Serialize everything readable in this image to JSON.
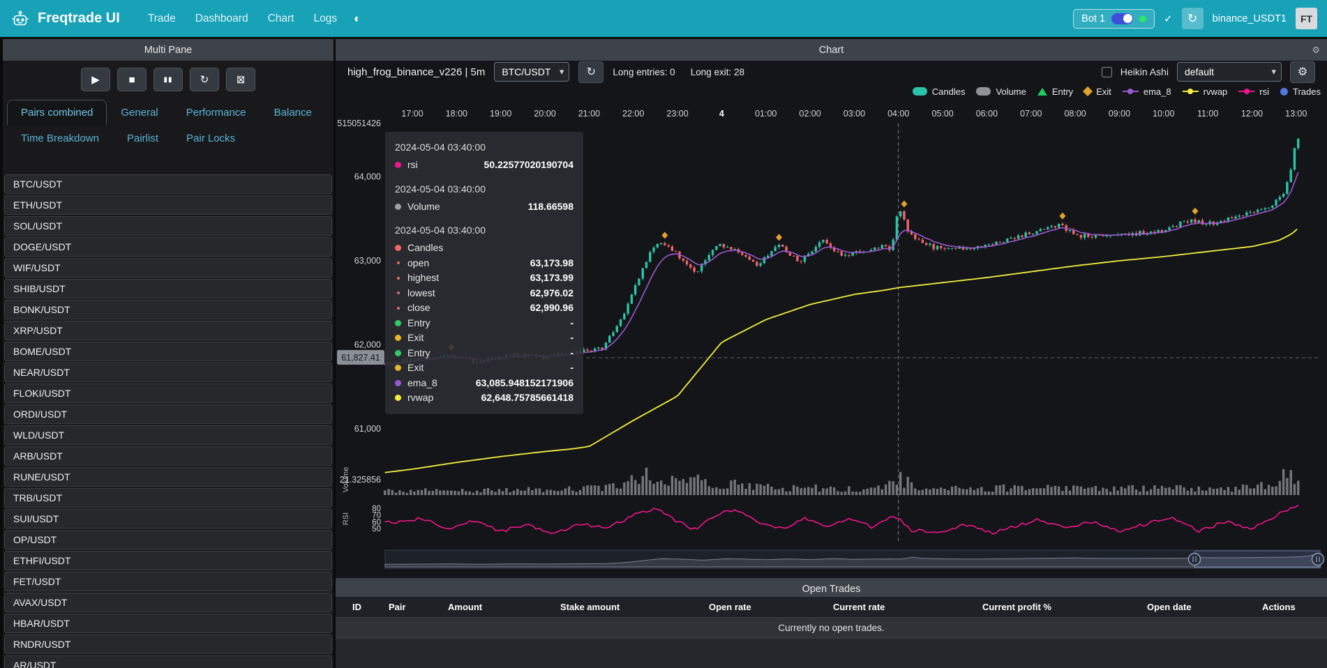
{
  "icons": {
    "play": "▶",
    "stop": "■",
    "pause": "▮▮",
    "refresh": "↻",
    "clear": "⊠",
    "theme": "◐",
    "gear": "⚙",
    "check": "✓",
    "caret": "▾"
  },
  "navbar": {
    "brand": "Freqtrade UI",
    "items": [
      "Trade",
      "Dashboard",
      "Chart",
      "Logs"
    ],
    "bot": {
      "label": "Bot 1",
      "toggle_on": true,
      "status_color": "#2ee66b"
    },
    "exchange_label": "binance_USDT1",
    "avatar_text": "FT"
  },
  "sidebar": {
    "title": "Multi Pane",
    "controls": [
      "play",
      "stop",
      "pause",
      "refresh",
      "clear"
    ],
    "tabs": [
      {
        "label": "Pairs combined",
        "active": true
      },
      {
        "label": "General",
        "active": false
      },
      {
        "label": "Performance",
        "active": false
      },
      {
        "label": "Balance",
        "active": false
      },
      {
        "label": "Time Breakdown",
        "active": false
      },
      {
        "label": "Pairlist",
        "active": false
      },
      {
        "label": "Pair Locks",
        "active": false
      }
    ],
    "pairs": [
      "BTC/USDT",
      "ETH/USDT",
      "SOL/USDT",
      "DOGE/USDT",
      "WIF/USDT",
      "SHIB/USDT",
      "BONK/USDT",
      "XRP/USDT",
      "BOME/USDT",
      "NEAR/USDT",
      "FLOKI/USDT",
      "ORDI/USDT",
      "WLD/USDT",
      "ARB/USDT",
      "RUNE/USDT",
      "TRB/USDT",
      "SUI/USDT",
      "OP/USDT",
      "ETHFI/USDT",
      "FET/USDT",
      "AVAX/USDT",
      "HBAR/USDT",
      "RNDR/USDT",
      "AR/USDT"
    ]
  },
  "chart_panel": {
    "title": "Chart",
    "strategy": "high_frog_binance_v226 | 5m",
    "pair": "BTC/USDT",
    "long_entries": "Long entries: 0",
    "long_exit": "Long exit: 28",
    "heikin_ashi_label": "Heikin Ashi",
    "heikin_ashi_checked": false,
    "plot_config": "default",
    "legend": [
      {
        "label": "Candles",
        "marker": "pill",
        "color": "#2cc4a8"
      },
      {
        "label": "Volume",
        "marker": "pill",
        "color": "#8f9398"
      },
      {
        "label": "Entry",
        "marker": "triangle",
        "color": "#1fce5f"
      },
      {
        "label": "Exit",
        "marker": "diamond",
        "color": "#e0a22e"
      },
      {
        "label": "ema_8",
        "marker": "line",
        "color": "#9b59d0"
      },
      {
        "label": "rvwap",
        "marker": "line",
        "color": "#f3ef3d"
      },
      {
        "label": "rsi",
        "marker": "line",
        "color": "#f0158c"
      },
      {
        "label": "Trades",
        "marker": "circle",
        "color": "#5577dd"
      }
    ],
    "crosshair_price_label": "61,827.41",
    "tooltip": {
      "sections": [
        {
          "time": "2024-05-04 03:40:00",
          "rows": [
            {
              "color": "#f0158c",
              "label": "rsi",
              "value": "50.22577020190704",
              "sub": false
            }
          ]
        },
        {
          "time": "2024-05-04 03:40:00",
          "rows": [
            {
              "color": "#9aa0a6",
              "label": "Volume",
              "value": "118.66598",
              "sub": false
            }
          ]
        },
        {
          "time": "2024-05-04 03:40:00",
          "rows": [
            {
              "color": "#ee6666",
              "label": "Candles",
              "value": "",
              "sub": false
            },
            {
              "color": "#ee6666",
              "label": "open",
              "value": "63,173.98",
              "sub": true
            },
            {
              "color": "#ee6666",
              "label": "highest",
              "value": "63,173.99",
              "sub": true
            },
            {
              "color": "#ee6666",
              "label": "lowest",
              "value": "62,976.02",
              "sub": true
            },
            {
              "color": "#ee6666",
              "label": "close",
              "value": "62,990.96",
              "sub": true
            },
            {
              "color": "#2fcc6b",
              "label": "Entry",
              "value": "-",
              "sub": false
            },
            {
              "color": "#e8b42a",
              "label": "Exit",
              "value": "-",
              "sub": false
            },
            {
              "color": "#2fcc6b",
              "label": "Entry",
              "value": "-",
              "sub": false
            },
            {
              "color": "#e8b42a",
              "label": "Exit",
              "value": "-",
              "sub": false
            },
            {
              "color": "#9b59d0",
              "label": "ema_8",
              "value": "63,085.948152171906",
              "sub": false
            },
            {
              "color": "#f3ef3d",
              "label": "rvwap",
              "value": "62,648.75785661418",
              "sub": false
            }
          ]
        }
      ]
    }
  },
  "chart_data": {
    "type": "candlestick",
    "pair": "BTC/USDT",
    "timeframe": "5m",
    "x_axis": {
      "ticks": [
        "17:00",
        "18:00",
        "19:00",
        "20:00",
        "21:00",
        "22:00",
        "23:00",
        "4",
        "01:00",
        "02:00",
        "03:00",
        "04:00",
        "05:00",
        "06:00",
        "07:00",
        "08:00",
        "09:00",
        "10:00",
        "11:00",
        "12:00",
        "13:00"
      ],
      "bold_tick": "4"
    },
    "y_axis": {
      "top_label": "515051426",
      "price_ticks": [
        "64,000",
        "63,000",
        "62,000",
        "61,000"
      ],
      "price_tick_values": [
        64000,
        63000,
        62000,
        61000
      ],
      "volume_label": "21.325856",
      "volume_title": "Volume",
      "rsi_title": "RSI",
      "rsi_ticks": [
        "80",
        "70",
        "60",
        "50"
      ]
    },
    "series": [
      "Candles",
      "Volume",
      "ema_8",
      "rvwap",
      "rsi"
    ],
    "crosshair": {
      "time": "04:00",
      "price": 61827.41
    },
    "price_range_view": [
      60400,
      64700
    ],
    "trend_anchors": [
      [
        -0.62,
        61780
      ],
      [
        0,
        61820
      ],
      [
        0.8,
        61880
      ],
      [
        1.5,
        61800
      ],
      [
        2.2,
        61890
      ],
      [
        3,
        61850
      ],
      [
        3.7,
        61920
      ],
      [
        4.3,
        61960
      ],
      [
        4.8,
        62370
      ],
      [
        5.2,
        62880
      ],
      [
        5.5,
        63220
      ],
      [
        5.9,
        63120
      ],
      [
        6.4,
        62840
      ],
      [
        6.9,
        63200
      ],
      [
        7.3,
        63140
      ],
      [
        7.8,
        62960
      ],
      [
        8.3,
        63180
      ],
      [
        8.8,
        62990
      ],
      [
        9.3,
        63250
      ],
      [
        9.7,
        63060
      ],
      [
        10.2,
        63120
      ],
      [
        10.6,
        63180
      ],
      [
        10.85,
        63120
      ],
      [
        11.0,
        63660
      ],
      [
        11.25,
        63300
      ],
      [
        11.8,
        63160
      ],
      [
        12.5,
        63130
      ],
      [
        13.2,
        63220
      ],
      [
        14.0,
        63330
      ],
      [
        14.6,
        63430
      ],
      [
        15.1,
        63300
      ],
      [
        15.8,
        63280
      ],
      [
        16.4,
        63330
      ],
      [
        17.0,
        63350
      ],
      [
        17.5,
        63480
      ],
      [
        18.1,
        63440
      ],
      [
        18.7,
        63540
      ],
      [
        19.3,
        63600
      ],
      [
        19.65,
        63750
      ],
      [
        19.85,
        63980
      ],
      [
        19.95,
        64350
      ],
      [
        20.07,
        64470
      ]
    ],
    "rvwap_anchors": [
      [
        -0.62,
        60480
      ],
      [
        0,
        60520
      ],
      [
        1,
        60600
      ],
      [
        2,
        60670
      ],
      [
        3,
        60730
      ],
      [
        3.6,
        60760
      ],
      [
        4,
        60790
      ],
      [
        5,
        61100
      ],
      [
        6,
        61390
      ],
      [
        7,
        62030
      ],
      [
        8,
        62300
      ],
      [
        9,
        62480
      ],
      [
        10,
        62600
      ],
      [
        10.67,
        62649
      ],
      [
        11,
        62680
      ],
      [
        12,
        62740
      ],
      [
        13,
        62800
      ],
      [
        14,
        62870
      ],
      [
        15,
        62940
      ],
      [
        16,
        63000
      ],
      [
        17,
        63050
      ],
      [
        18,
        63110
      ],
      [
        19,
        63170
      ],
      [
        19.6,
        63240
      ],
      [
        19.9,
        63320
      ],
      [
        20.07,
        63400
      ]
    ],
    "rsi_anchors": [
      [
        -0.62,
        58
      ],
      [
        0.2,
        65
      ],
      [
        0.8,
        50
      ],
      [
        1.4,
        62
      ],
      [
        2.0,
        46
      ],
      [
        2.6,
        56
      ],
      [
        3.2,
        43
      ],
      [
        3.8,
        57
      ],
      [
        4.4,
        50
      ],
      [
        5.0,
        70
      ],
      [
        5.5,
        80
      ],
      [
        5.9,
        64
      ],
      [
        6.4,
        48
      ],
      [
        6.9,
        72
      ],
      [
        7.4,
        77
      ],
      [
        7.9,
        56
      ],
      [
        8.4,
        49
      ],
      [
        8.9,
        66
      ],
      [
        9.4,
        53
      ],
      [
        9.9,
        64
      ],
      [
        10.4,
        52
      ],
      [
        10.9,
        70
      ],
      [
        11.3,
        48
      ],
      [
        11.9,
        44
      ],
      [
        12.5,
        57
      ],
      [
        13.1,
        44
      ],
      [
        13.7,
        54
      ],
      [
        14.2,
        64
      ],
      [
        14.8,
        49
      ],
      [
        15.4,
        61
      ],
      [
        16.0,
        45
      ],
      [
        16.6,
        57
      ],
      [
        17.2,
        66
      ],
      [
        17.8,
        47
      ],
      [
        18.4,
        60
      ],
      [
        19.0,
        49
      ],
      [
        19.5,
        68
      ],
      [
        19.8,
        78
      ],
      [
        20.07,
        84
      ]
    ],
    "volume_anchors": [
      [
        -0.62,
        0.22
      ],
      [
        2,
        0.22
      ],
      [
        4,
        0.3
      ],
      [
        4.8,
        0.5
      ],
      [
        5.4,
        0.95
      ],
      [
        5.9,
        0.6
      ],
      [
        6.4,
        0.65
      ],
      [
        7,
        0.45
      ],
      [
        7.6,
        0.5
      ],
      [
        8.2,
        0.3
      ],
      [
        9,
        0.35
      ],
      [
        9.8,
        0.3
      ],
      [
        10.5,
        0.35
      ],
      [
        10.95,
        0.9
      ],
      [
        11.3,
        0.5
      ],
      [
        12,
        0.28
      ],
      [
        13,
        0.3
      ],
      [
        14,
        0.38
      ],
      [
        15,
        0.3
      ],
      [
        16,
        0.26
      ],
      [
        17,
        0.42
      ],
      [
        18,
        0.3
      ],
      [
        19,
        0.34
      ],
      [
        19.6,
        0.7
      ],
      [
        19.85,
        1.0
      ],
      [
        20.07,
        0.85
      ]
    ]
  },
  "open_trades": {
    "title": "Open Trades",
    "columns": [
      "ID",
      "Pair",
      "Amount",
      "Stake amount",
      "Open rate",
      "Current rate",
      "Current profit %",
      "Open date",
      "Actions"
    ],
    "empty_message": "Currently no open trades."
  }
}
